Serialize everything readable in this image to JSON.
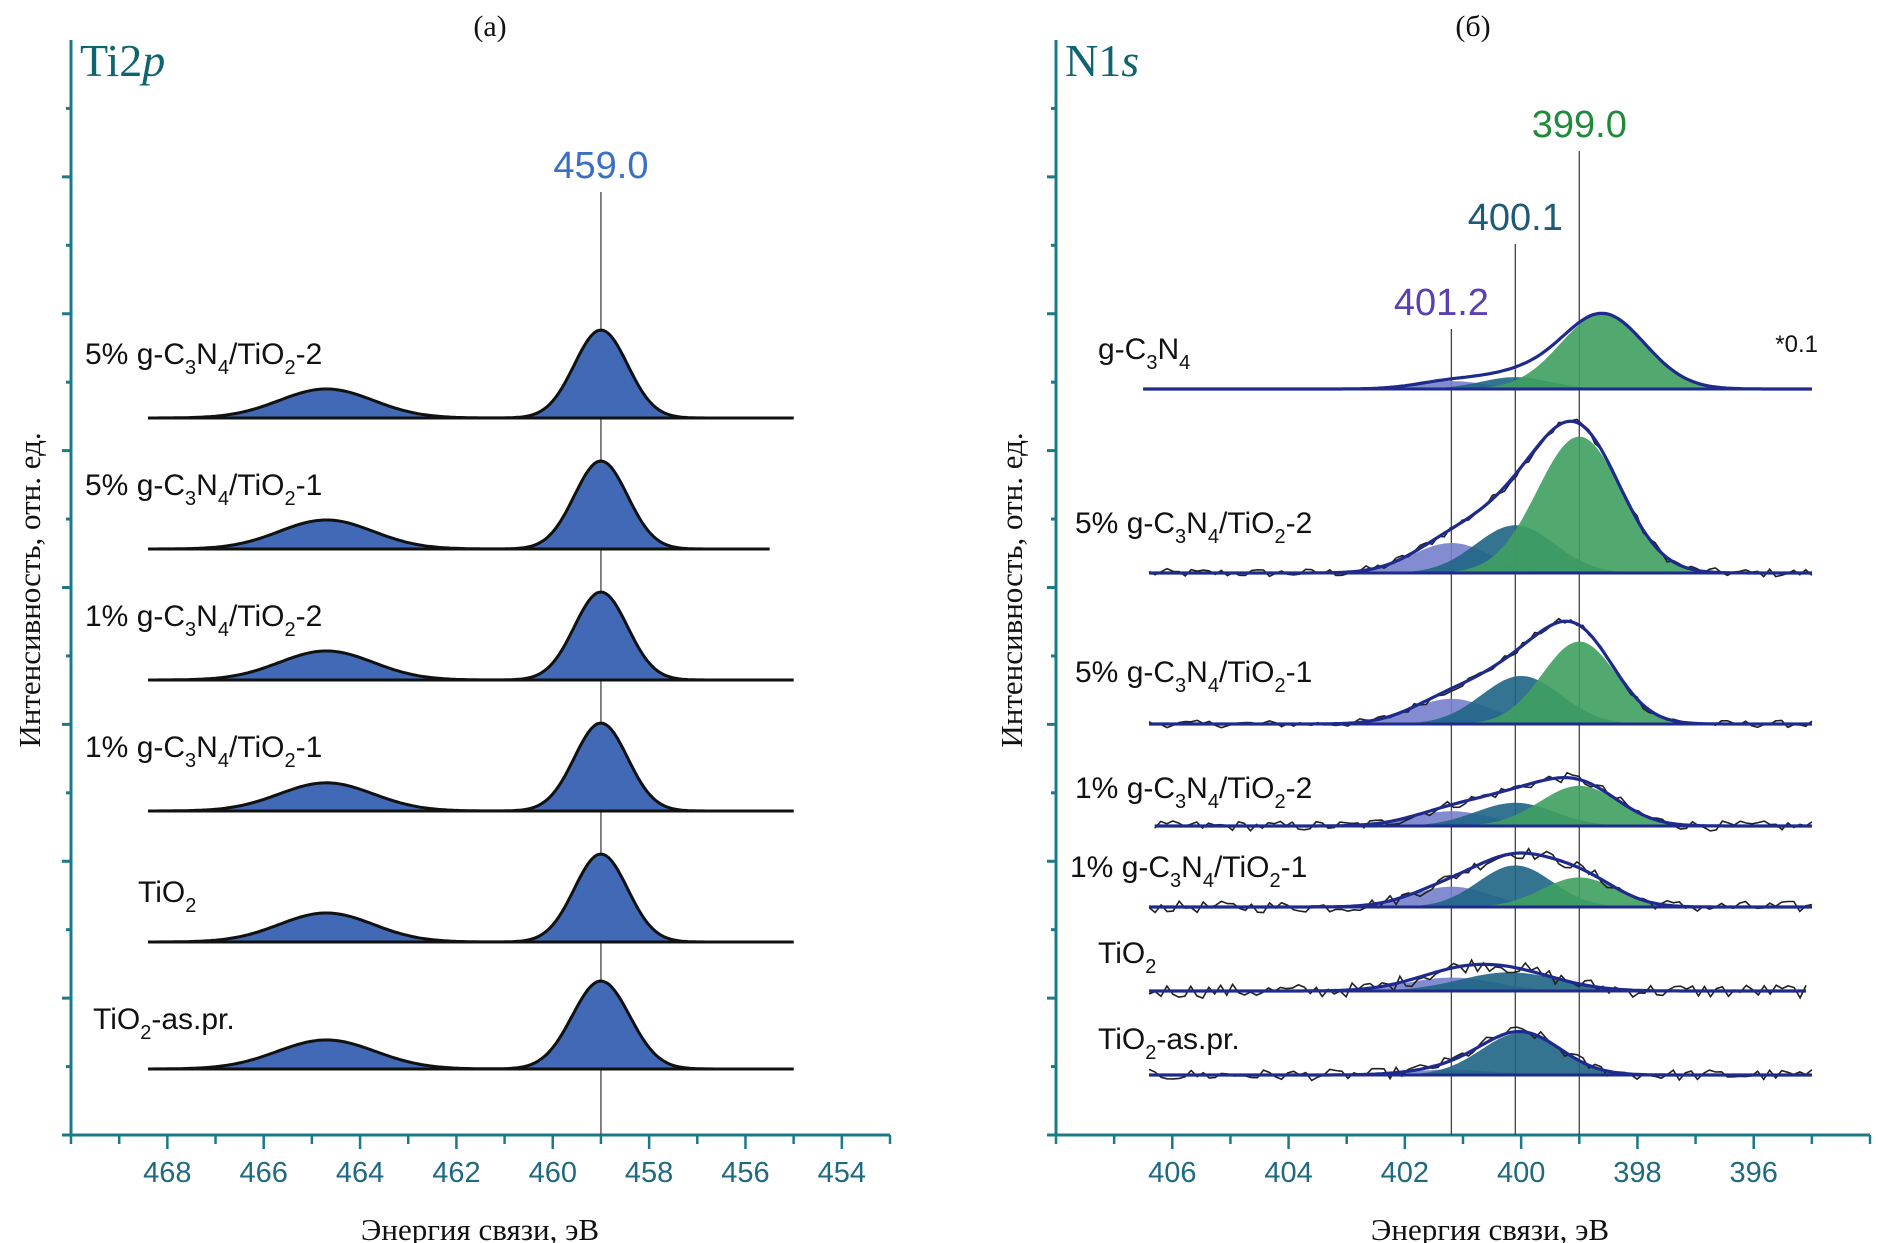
{
  "chart_data": [
    {
      "type": "line",
      "panel_label": "(a)",
      "title": "Ti2p",
      "title_main": "Ti2",
      "title_italic": "p",
      "xlabel": "Энергия связи, эВ",
      "ylabel": "Интенсивность, отн. ед.",
      "xlim": [
        470,
        453
      ],
      "x_reversed": true,
      "xticks": [
        468,
        466,
        464,
        462,
        460,
        458,
        456,
        454
      ],
      "reference_lines": [
        {
          "x": 459.0,
          "label": "459.0",
          "color": "#3a6fc4"
        }
      ],
      "fill_color": "#4169b5",
      "grid": false,
      "series": [
        {
          "name": "5% g-C3N4/TiO2-2",
          "label_parts": [
            "5% g-C",
            "3",
            "N",
            "4",
            "/TiO",
            "2",
            "-2"
          ],
          "x_range": [
            468.4,
            455.0
          ],
          "peaks": [
            {
              "center": 459.0,
              "height": 1.0,
              "fwhm": 1.3
            },
            {
              "center": 464.7,
              "height": 0.33,
              "fwhm": 2.3
            }
          ]
        },
        {
          "name": "5% g-C3N4/TiO2-1",
          "label_parts": [
            "5% g-C",
            "3",
            "N",
            "4",
            "/TiO",
            "2",
            "-1"
          ],
          "x_range": [
            468.4,
            455.5
          ],
          "peaks": [
            {
              "center": 459.0,
              "height": 1.0,
              "fwhm": 1.3
            },
            {
              "center": 464.7,
              "height": 0.33,
              "fwhm": 2.3
            }
          ]
        },
        {
          "name": "1% g-C3N4/TiO2-2",
          "label_parts": [
            "1% g-C",
            "3",
            "N",
            "4",
            "/TiO",
            "2",
            "-2"
          ],
          "x_range": [
            468.4,
            455.0
          ],
          "peaks": [
            {
              "center": 459.0,
              "height": 1.0,
              "fwhm": 1.3
            },
            {
              "center": 464.7,
              "height": 0.33,
              "fwhm": 2.3
            }
          ]
        },
        {
          "name": "1% g-C3N4/TiO2-1",
          "label_parts": [
            "1% g-C",
            "3",
            "N",
            "4",
            "/TiO",
            "2",
            "-1"
          ],
          "x_range": [
            468.4,
            455.0
          ],
          "peaks": [
            {
              "center": 459.0,
              "height": 1.0,
              "fwhm": 1.3
            },
            {
              "center": 464.7,
              "height": 0.32,
              "fwhm": 2.3
            }
          ]
        },
        {
          "name": "TiO2",
          "label_parts": [
            "TiO",
            "2",
            "",
            "",
            "",
            "",
            ""
          ],
          "x_range": [
            468.4,
            455.0
          ],
          "peaks": [
            {
              "center": 459.0,
              "height": 1.0,
              "fwhm": 1.3
            },
            {
              "center": 464.7,
              "height": 0.33,
              "fwhm": 2.3
            }
          ]
        },
        {
          "name": "TiO2-as.pr.",
          "label_parts": [
            "TiO",
            "2",
            "-as.pr.",
            "",
            "",
            "",
            ""
          ],
          "x_range": [
            468.4,
            455.0
          ],
          "peaks": [
            {
              "center": 459.0,
              "height": 1.0,
              "fwhm": 1.4
            },
            {
              "center": 464.7,
              "height": 0.33,
              "fwhm": 2.4
            }
          ]
        }
      ]
    },
    {
      "type": "line",
      "panel_label": "(б)",
      "title": "N1s",
      "title_main": "N1",
      "title_italic": "s",
      "xlabel": "Энергия связи, эВ",
      "ylabel": "Интенсивность, отн. ед.",
      "xlim": [
        408,
        394
      ],
      "x_reversed": true,
      "xticks": [
        406,
        404,
        402,
        400,
        398,
        396
      ],
      "reference_lines": [
        {
          "x": 401.2,
          "label": "401.2",
          "color": "#5a3fb0"
        },
        {
          "x": 400.1,
          "label": "400.1",
          "color": "#1f5a78"
        },
        {
          "x": 399.0,
          "label": "399.0",
          "color": "#1f8a3a"
        }
      ],
      "component_colors": {
        "401.2": "#7580cc",
        "400.1": "#1f6585",
        "399.0": "#3fa060",
        "envelope": "#1e2a8c"
      },
      "grid": false,
      "annotations": [
        {
          "text": "*0.1",
          "series": "g-C3N4"
        }
      ],
      "series": [
        {
          "name": "g-C3N4",
          "label_parts": [
            "g-C",
            "3",
            "N",
            "4",
            "",
            "",
            ""
          ],
          "x_range": [
            406.5,
            395.0
          ],
          "noise": 0.0,
          "components": [
            {
              "center": 401.2,
              "height": 0.1,
              "fwhm": 1.4
            },
            {
              "center": 400.1,
              "height": 0.15,
              "fwhm": 1.4
            },
            {
              "center": 398.6,
              "height": 0.95,
              "fwhm": 1.7
            }
          ]
        },
        {
          "name": "5% g-C3N4/TiO2-2",
          "label_parts": [
            "5% g-C",
            "3",
            "N",
            "4",
            "/TiO",
            "2",
            "-2"
          ],
          "x_range": [
            406.4,
            395.0
          ],
          "noise": 0.02,
          "components": [
            {
              "center": 401.2,
              "height": 0.22,
              "fwhm": 1.6
            },
            {
              "center": 400.1,
              "height": 0.35,
              "fwhm": 1.6
            },
            {
              "center": 399.0,
              "height": 1.0,
              "fwhm": 1.7
            }
          ]
        },
        {
          "name": "5% g-C3N4/TiO2-1",
          "label_parts": [
            "5% g-C",
            "3",
            "N",
            "4",
            "/TiO",
            "2",
            "-1"
          ],
          "x_range": [
            406.4,
            395.0
          ],
          "noise": 0.02,
          "components": [
            {
              "center": 401.2,
              "height": 0.22,
              "fwhm": 1.6
            },
            {
              "center": 400.0,
              "height": 0.42,
              "fwhm": 1.6
            },
            {
              "center": 399.0,
              "height": 0.72,
              "fwhm": 1.5
            }
          ]
        },
        {
          "name": "1% g-C3N4/TiO2-2",
          "label_parts": [
            "1% g-C",
            "3",
            "N",
            "4",
            "/TiO",
            "2",
            "-2"
          ],
          "x_range": [
            406.3,
            395.0
          ],
          "noise": 0.03,
          "components": [
            {
              "center": 401.2,
              "height": 0.14,
              "fwhm": 1.6
            },
            {
              "center": 400.1,
              "height": 0.22,
              "fwhm": 1.6
            },
            {
              "center": 399.0,
              "height": 0.38,
              "fwhm": 1.6
            }
          ]
        },
        {
          "name": "1% g-C3N4/TiO2-1",
          "label_parts": [
            "1% g-C",
            "3",
            "N",
            "4",
            "/TiO",
            "2",
            "-1"
          ],
          "x_range": [
            406.4,
            395.0
          ],
          "noise": 0.04,
          "components": [
            {
              "center": 401.2,
              "height": 0.22,
              "fwhm": 1.6
            },
            {
              "center": 400.1,
              "height": 0.45,
              "fwhm": 1.5
            },
            {
              "center": 399.0,
              "height": 0.32,
              "fwhm": 1.5
            }
          ]
        },
        {
          "name": "TiO2",
          "label_parts": [
            "TiO",
            "2",
            "",
            "",
            "",
            "",
            ""
          ],
          "x_range": [
            406.4,
            395.1
          ],
          "noise": 0.06,
          "components": [
            {
              "center": 401.2,
              "height": 0.18,
              "fwhm": 1.8
            },
            {
              "center": 400.2,
              "height": 0.25,
              "fwhm": 2.0
            }
          ]
        },
        {
          "name": "TiO2-as.pr.",
          "label_parts": [
            "TiO",
            "2",
            "-as.pr.",
            "",
            "",
            "",
            ""
          ],
          "x_range": [
            406.4,
            395.0
          ],
          "noise": 0.05,
          "components": [
            {
              "center": 401.2,
              "height": 0.08,
              "fwhm": 1.6
            },
            {
              "center": 400.0,
              "height": 0.6,
              "fwhm": 1.6
            }
          ]
        }
      ]
    }
  ]
}
